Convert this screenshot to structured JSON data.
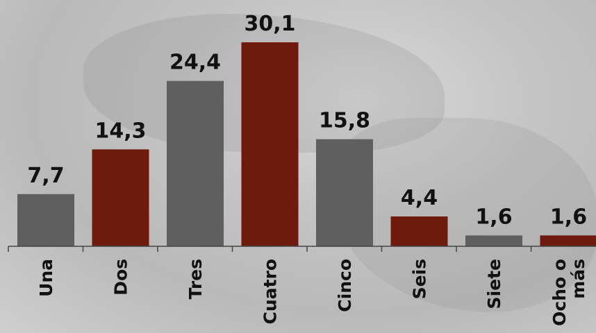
{
  "chart_data": {
    "type": "bar",
    "categories": [
      "Una",
      "Dos",
      "Tres",
      "Cuatro",
      "Cinco",
      "Seis",
      "Siete",
      "Ocho o más"
    ],
    "category_lines": [
      [
        "Una"
      ],
      [
        "Dos"
      ],
      [
        "Tres"
      ],
      [
        "Cuatro"
      ],
      [
        "Cinco"
      ],
      [
        "Seis"
      ],
      [
        "Siete"
      ],
      [
        "Ocho o",
        "más"
      ]
    ],
    "values": [
      7.7,
      14.3,
      24.4,
      30.1,
      15.8,
      4.4,
      1.6,
      1.6
    ],
    "value_labels": [
      "7,7",
      "14,3",
      "24,4",
      "30,1",
      "15,8",
      "4,4",
      "1,6",
      "1,6"
    ],
    "bar_colors": [
      "#5f5f5f",
      "#6e1a0c",
      "#5f5f5f",
      "#6e1a0c",
      "#5f5f5f",
      "#6e1a0c",
      "#5f5f5f",
      "#6e1a0c"
    ],
    "ylim": [
      0,
      30.1
    ],
    "grid": false,
    "legend": "none"
  }
}
